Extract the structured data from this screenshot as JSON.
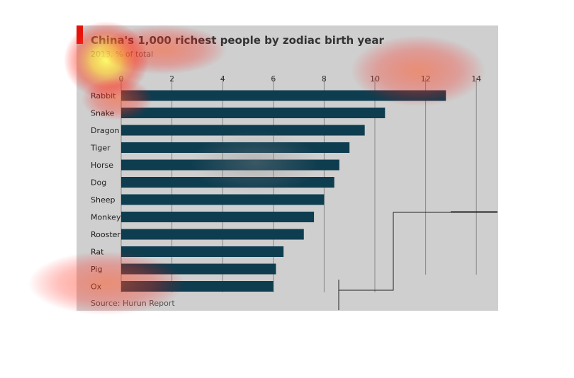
{
  "chart_data": {
    "type": "bar",
    "orientation": "horizontal",
    "title": "China's 1,000 richest people by zodiac birth year",
    "subtitle": "2013, % of total",
    "source": "Source: Hurun Report",
    "categories": [
      "Rabbit",
      "Snake",
      "Dragon",
      "Tiger",
      "Horse",
      "Dog",
      "Sheep",
      "Monkey",
      "Rooster",
      "Rat",
      "Pig",
      "Ox"
    ],
    "values": [
      12.8,
      10.4,
      9.6,
      9.0,
      8.6,
      8.4,
      8.0,
      7.6,
      7.2,
      6.4,
      6.1,
      6.0
    ],
    "xticks": [
      0,
      2,
      4,
      6,
      8,
      10,
      12,
      14
    ],
    "xlim": [
      0,
      14
    ],
    "grid": true,
    "colors": {
      "bar": "#0f3d50",
      "background": "#cfcfcf",
      "accent": "#e3120b"
    }
  }
}
